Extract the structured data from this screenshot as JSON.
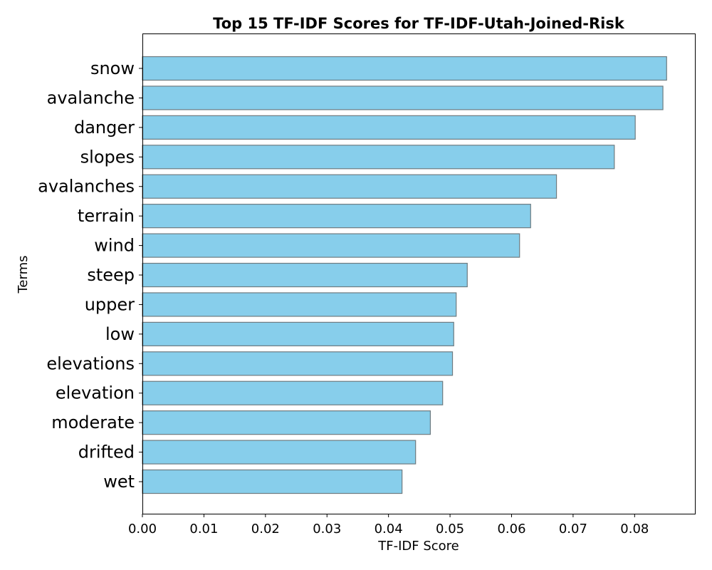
{
  "chart_data": {
    "type": "bar",
    "orientation": "horizontal",
    "title": "Top 15 TF-IDF Scores for TF-IDF-Utah-Joined-Risk",
    "xlabel": "TF-IDF Score",
    "ylabel": "Terms",
    "categories": [
      "snow",
      "avalanche",
      "danger",
      "slopes",
      "avalanches",
      "terrain",
      "wind",
      "steep",
      "upper",
      "low",
      "elevations",
      "elevation",
      "moderate",
      "drifted",
      "wet"
    ],
    "values": [
      0.0852,
      0.0846,
      0.0801,
      0.0767,
      0.0673,
      0.0631,
      0.0613,
      0.0528,
      0.051,
      0.0506,
      0.0504,
      0.0488,
      0.0468,
      0.0444,
      0.0422
    ],
    "xlim": [
      0,
      0.0898
    ],
    "xticks": [
      "0.00",
      "0.01",
      "0.02",
      "0.03",
      "0.04",
      "0.05",
      "0.06",
      "0.07",
      "0.08"
    ],
    "grid": false,
    "legend": "none",
    "colors": {
      "bar_fill": "#87ceeb",
      "bar_edge": "#6e7b80"
    }
  }
}
